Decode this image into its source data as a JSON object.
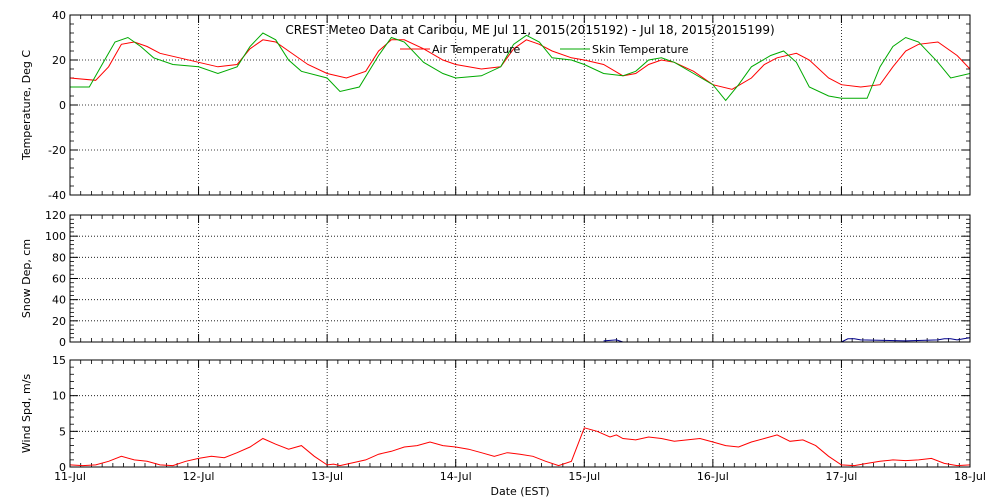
{
  "title": "CREST Meteo Data at Caribou, ME   Jul 11, 2015(2015192) - Jul 18, 2015(2015199)",
  "xlabel": "Date (EST)",
  "x_ticks": [
    "11-Jul",
    "12-Jul",
    "13-Jul",
    "14-Jul",
    "15-Jul",
    "16-Jul",
    "17-Jul",
    "18-Jul"
  ],
  "chart_data": [
    {
      "type": "line",
      "ylabel": "Temperature, Deg C",
      "ylim": [
        -40,
        40
      ],
      "yticks": [
        -40,
        -20,
        0,
        20,
        40
      ],
      "grid": true,
      "legend_placement": "top-center",
      "x_unit": "days since 11-Jul 00:00",
      "series": [
        {
          "name": "Air Temperature",
          "color": "#ff0000",
          "x": [
            0,
            0.2,
            0.3,
            0.4,
            0.5,
            0.6,
            0.7,
            0.85,
            1.0,
            1.15,
            1.3,
            1.4,
            1.5,
            1.6,
            1.7,
            1.85,
            2.0,
            2.15,
            2.3,
            2.4,
            2.5,
            2.6,
            2.75,
            2.9,
            3.0,
            3.2,
            3.35,
            3.45,
            3.55,
            3.65,
            3.75,
            3.9,
            4.0,
            4.15,
            4.3,
            4.4,
            4.5,
            4.6,
            4.7,
            4.85,
            5.0,
            5.15,
            5.3,
            5.4,
            5.5,
            5.65,
            5.75,
            5.9,
            6.0,
            6.15,
            6.3,
            6.4,
            6.5,
            6.6,
            6.75,
            6.9,
            7.0
          ],
          "y": [
            12,
            11,
            17,
            27,
            28,
            26,
            23,
            21,
            19,
            17,
            18,
            25,
            29,
            28,
            24,
            18,
            14,
            12,
            15,
            24,
            29,
            29,
            25,
            20,
            18,
            16,
            17,
            25,
            29,
            27,
            24,
            21,
            20,
            18,
            13,
            14,
            18,
            20,
            19,
            15,
            9,
            7,
            12,
            18,
            21,
            23,
            20,
            12,
            9,
            8,
            9,
            17,
            24,
            27,
            28,
            22,
            16
          ]
        },
        {
          "name": "Skin Temperature",
          "color": "#00aa00",
          "x": [
            0,
            0.15,
            0.25,
            0.35,
            0.45,
            0.55,
            0.65,
            0.8,
            1.0,
            1.15,
            1.3,
            1.4,
            1.5,
            1.6,
            1.7,
            1.8,
            2.0,
            2.1,
            2.25,
            2.4,
            2.5,
            2.6,
            2.75,
            2.9,
            3.0,
            3.2,
            3.35,
            3.45,
            3.55,
            3.65,
            3.75,
            3.9,
            4.0,
            4.15,
            4.3,
            4.4,
            4.5,
            4.6,
            4.7,
            4.85,
            5.0,
            5.1,
            5.2,
            5.3,
            5.45,
            5.55,
            5.65,
            5.75,
            5.9,
            6.0,
            6.2,
            6.3,
            6.4,
            6.5,
            6.6,
            6.75,
            6.85,
            7.0
          ],
          "y": [
            8,
            8,
            18,
            28,
            30,
            26,
            21,
            18,
            17,
            14,
            17,
            26,
            32,
            29,
            20,
            15,
            12,
            6,
            8,
            22,
            30,
            28,
            19,
            14,
            12,
            13,
            17,
            27,
            31,
            28,
            21,
            20,
            18,
            14,
            13,
            15,
            20,
            21,
            19,
            14,
            9,
            2,
            9,
            17,
            22,
            24,
            19,
            8,
            4,
            3,
            3,
            17,
            26,
            30,
            28,
            19,
            12,
            14
          ]
        }
      ]
    },
    {
      "type": "line",
      "ylabel": "Snow Dep, cm",
      "ylim": [
        0,
        120
      ],
      "yticks": [
        0,
        20,
        40,
        60,
        80,
        100,
        120
      ],
      "grid": true,
      "series": [
        {
          "color": "#00008b",
          "x": [
            4.15,
            4.25,
            4.3,
            6.0,
            6.05,
            6.1,
            6.15,
            6.5,
            6.75,
            6.8,
            6.85,
            6.9,
            6.95,
            7.0
          ],
          "y": [
            1,
            2,
            0,
            0,
            3,
            3,
            2,
            1,
            2,
            3,
            3,
            2,
            3,
            4
          ]
        }
      ]
    },
    {
      "type": "line",
      "ylabel": "Wind Spd, m/s",
      "ylim": [
        0,
        15
      ],
      "yticks": [
        0,
        5,
        10,
        15
      ],
      "grid": true,
      "series": [
        {
          "color": "#ff0000",
          "x": [
            0,
            0.1,
            0.2,
            0.3,
            0.4,
            0.5,
            0.6,
            0.7,
            0.8,
            0.9,
            1.0,
            1.1,
            1.2,
            1.3,
            1.4,
            1.5,
            1.6,
            1.7,
            1.8,
            1.9,
            2.0,
            2.05,
            2.1,
            2.2,
            2.3,
            2.4,
            2.5,
            2.6,
            2.7,
            2.8,
            2.9,
            3.0,
            3.1,
            3.2,
            3.3,
            3.4,
            3.5,
            3.6,
            3.7,
            3.8,
            3.9,
            4.0,
            4.1,
            4.15,
            4.2,
            4.25,
            4.3,
            4.4,
            4.5,
            4.6,
            4.7,
            4.8,
            4.9,
            5.0,
            5.1,
            5.2,
            5.3,
            5.4,
            5.5,
            5.6,
            5.7,
            5.8,
            5.9,
            6.0,
            6.1,
            6.2,
            6.3,
            6.4,
            6.5,
            6.6,
            6.7,
            6.8,
            6.9,
            7.0
          ],
          "y": [
            0.3,
            0.2,
            0.3,
            0.8,
            1.5,
            1.0,
            0.8,
            0.3,
            0.2,
            0.8,
            1.2,
            1.5,
            1.3,
            2.0,
            2.8,
            4.0,
            3.2,
            2.5,
            3.0,
            1.5,
            0.3,
            0.4,
            0.2,
            0.6,
            1.0,
            1.8,
            2.2,
            2.8,
            3.0,
            3.5,
            3.0,
            2.8,
            2.5,
            2.0,
            1.5,
            2.0,
            1.8,
            1.5,
            0.8,
            0.2,
            0.8,
            5.5,
            5.0,
            4.6,
            4.2,
            4.5,
            4.0,
            3.8,
            4.2,
            4.0,
            3.6,
            3.8,
            4.0,
            3.5,
            3.0,
            2.8,
            3.5,
            4.0,
            4.5,
            3.6,
            3.8,
            3.0,
            1.5,
            0.3,
            0.2,
            0.5,
            0.8,
            1.0,
            0.9,
            1.0,
            1.2,
            0.5,
            0.2,
            0.3
          ]
        }
      ]
    }
  ]
}
